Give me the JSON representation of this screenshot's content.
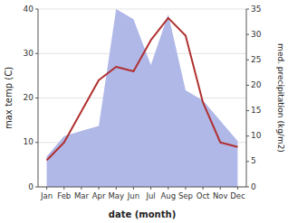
{
  "chart_data": {
    "type": "line",
    "xlabel": "date (month)",
    "ylabel": "max temp (C)",
    "y2label": "med. precipitation (kg/m2)",
    "categories": [
      "Jan",
      "Feb",
      "Mar",
      "Apr",
      "May",
      "Jun",
      "Jul",
      "Aug",
      "Sep",
      "Oct",
      "Nov",
      "Dec"
    ],
    "series": [
      {
        "type": "area",
        "axis": "y2",
        "color": "#b0b8e8",
        "values": [
          6,
          10,
          11,
          12,
          35,
          33,
          24,
          34,
          19,
          17,
          13,
          9
        ]
      },
      {
        "type": "line",
        "color": "#b03030",
        "values": [
          6,
          10,
          17,
          24,
          27,
          26,
          33,
          38,
          34,
          19,
          10,
          9
        ]
      }
    ],
    "ylim": [
      0,
      40
    ],
    "yticks": [
      0,
      10,
      20,
      30,
      40
    ],
    "y2lim": [
      0,
      35
    ],
    "y2ticks": [
      0,
      5,
      10,
      15,
      20,
      25,
      30,
      35
    ],
    "grid": true
  }
}
